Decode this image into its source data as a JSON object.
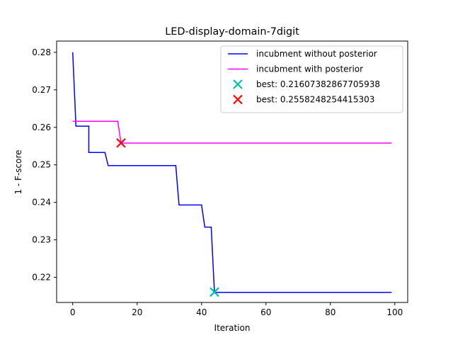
{
  "chart_data": {
    "type": "line",
    "title": "LED-display-domain-7digit",
    "xlabel": "Iteration",
    "ylabel": "1 - F-score",
    "xlim": [
      -5,
      104
    ],
    "ylim": [
      0.2133,
      0.283
    ],
    "xticks": [
      0,
      20,
      40,
      60,
      80,
      100
    ],
    "yticks": [
      0.22,
      0.23,
      0.24,
      0.25,
      0.26,
      0.27,
      0.28
    ],
    "xtick_labels": [
      "0",
      "20",
      "40",
      "60",
      "80",
      "100"
    ],
    "ytick_labels": [
      "0.22",
      "0.23",
      "0.24",
      "0.25",
      "0.26",
      "0.27",
      "0.28"
    ],
    "grid": false,
    "legend_position": "top-right",
    "series": [
      {
        "name": "incubment without posterior",
        "color": "#0000ff",
        "kind": "step-line",
        "points": [
          [
            0,
            0.28
          ],
          [
            1,
            0.2603
          ],
          [
            5,
            0.2603
          ],
          [
            5,
            0.2533
          ],
          [
            10,
            0.2533
          ],
          [
            11,
            0.2498
          ],
          [
            32,
            0.2498
          ],
          [
            33,
            0.2393
          ],
          [
            40,
            0.2393
          ],
          [
            41,
            0.2334
          ],
          [
            43,
            0.2334
          ],
          [
            44,
            0.216
          ],
          [
            99,
            0.216
          ]
        ]
      },
      {
        "name": "incubment with posterior",
        "color": "#ff00ff",
        "kind": "step-line",
        "points": [
          [
            0,
            0.2616
          ],
          [
            14,
            0.2616
          ],
          [
            15,
            0.2558
          ],
          [
            99,
            0.2558
          ]
        ]
      },
      {
        "name": "best: 0.21607382867705938",
        "color": "#00bfa5",
        "kind": "marker",
        "points": [
          [
            44,
            0.21607382867705938
          ]
        ]
      },
      {
        "name": "best: 0.2558248254415303",
        "color": "#ff0000",
        "kind": "marker",
        "points": [
          [
            15,
            0.2558248254415303
          ]
        ]
      }
    ]
  }
}
